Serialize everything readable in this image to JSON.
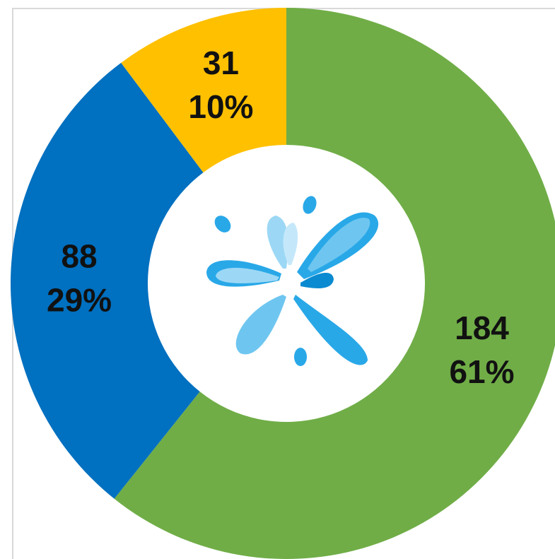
{
  "chart_data": {
    "type": "donut",
    "categories": [
      null,
      null,
      null
    ],
    "values": [
      184,
      88,
      31
    ],
    "percent_labels": [
      "61%",
      "29%",
      "10%"
    ],
    "colors": [
      "#70ad47",
      "#0070c0",
      "#ffc000"
    ],
    "start_angle": 0,
    "direction": "clockwise"
  }
}
